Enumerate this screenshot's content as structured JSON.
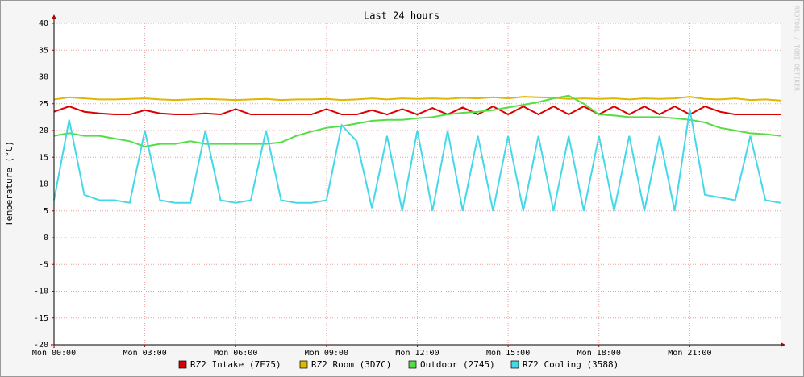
{
  "chart_data": {
    "type": "line",
    "title": "Last 24 hours",
    "y_label": "Temperature (°C)",
    "watermark": "RRDTOOL / TOBI OETIKER",
    "x": [
      0,
      0.5,
      1,
      1.5,
      2,
      2.5,
      3,
      3.5,
      4,
      4.5,
      5,
      5.5,
      6,
      6.5,
      7,
      7.5,
      8,
      8.5,
      9,
      9.5,
      10,
      10.5,
      11,
      11.5,
      12,
      12.5,
      13,
      13.5,
      14,
      14.5,
      15,
      15.5,
      16,
      16.5,
      17,
      17.5,
      18,
      18.5,
      19,
      19.5,
      20,
      20.5,
      21,
      21.5,
      22,
      22.5,
      23,
      23.5,
      24
    ],
    "xlim": [
      0,
      24
    ],
    "xticks": [
      {
        "value": 0,
        "label": "Mon 00:00"
      },
      {
        "value": 3,
        "label": "Mon 03:00"
      },
      {
        "value": 6,
        "label": "Mon 06:00"
      },
      {
        "value": 9,
        "label": "Mon 09:00"
      },
      {
        "value": 12,
        "label": "Mon 12:00"
      },
      {
        "value": 15,
        "label": "Mon 15:00"
      },
      {
        "value": 18,
        "label": "Mon 18:00"
      },
      {
        "value": 21,
        "label": "Mon 21:00"
      }
    ],
    "ylim": [
      -20,
      40
    ],
    "yticks": [
      -20,
      -15,
      -10,
      -5,
      0,
      5,
      10,
      15,
      20,
      25,
      30,
      35,
      40
    ],
    "grid": true,
    "series": [
      {
        "name": "RZ2 Intake (7F75)",
        "color": "#dd0000",
        "values": [
          23.5,
          24.5,
          23.5,
          23.2,
          23,
          23,
          23.8,
          23.2,
          23,
          23,
          23.2,
          23,
          24,
          23,
          23,
          23,
          23,
          23,
          24,
          23,
          23,
          23.8,
          23,
          24,
          23,
          24.2,
          23,
          24.3,
          23,
          24.5,
          23,
          24.5,
          23,
          24.5,
          23,
          24.5,
          23,
          24.5,
          23,
          24.5,
          23,
          24.5,
          23,
          24.5,
          23.5,
          23,
          23,
          23,
          23
        ]
      },
      {
        "name": "RZ2 Room (3D7C)",
        "color": "#ddb700",
        "values": [
          25.8,
          26.2,
          26,
          25.8,
          25.8,
          25.9,
          26,
          25.8,
          25.7,
          25.8,
          25.9,
          25.8,
          25.7,
          25.8,
          25.9,
          25.7,
          25.8,
          25.8,
          25.9,
          25.7,
          25.8,
          26,
          25.8,
          26,
          25.9,
          26,
          25.9,
          26.1,
          26,
          26.2,
          26,
          26.3,
          26.2,
          26.1,
          25.9,
          26,
          25.9,
          26,
          25.8,
          26,
          25.9,
          26,
          26.3,
          25.9,
          25.8,
          26,
          25.7,
          25.8,
          25.6
        ]
      },
      {
        "name": "Outdoor (2745)",
        "color": "#55dd44",
        "values": [
          19,
          19.5,
          19,
          19,
          18.5,
          18,
          17,
          17.5,
          17.5,
          18,
          17.5,
          17.5,
          17.5,
          17.5,
          17.5,
          17.8,
          19,
          19.8,
          20.5,
          20.8,
          21.3,
          21.8,
          22,
          22,
          22.3,
          22.5,
          23,
          23.3,
          23.5,
          23.8,
          24.3,
          24.8,
          25.3,
          26,
          26.5,
          25,
          23,
          22.8,
          22.5,
          22.5,
          22.5,
          22.3,
          22,
          21.5,
          20.5,
          20,
          19.5,
          19.3,
          19
        ]
      },
      {
        "name": "RZ2 Cooling (3588)",
        "color": "#44d8e8",
        "values": [
          7,
          22,
          8,
          7,
          7,
          6.5,
          20,
          7,
          6.5,
          6.5,
          20,
          7,
          6.5,
          7,
          20,
          7,
          6.5,
          6.5,
          7,
          21,
          18,
          5.5,
          19,
          5,
          20,
          5,
          20,
          5,
          19,
          5,
          19,
          5,
          19,
          5,
          19,
          5,
          19,
          5,
          19,
          5,
          19,
          5,
          24,
          8,
          7.5,
          7,
          19,
          7,
          6.5
        ]
      }
    ]
  }
}
